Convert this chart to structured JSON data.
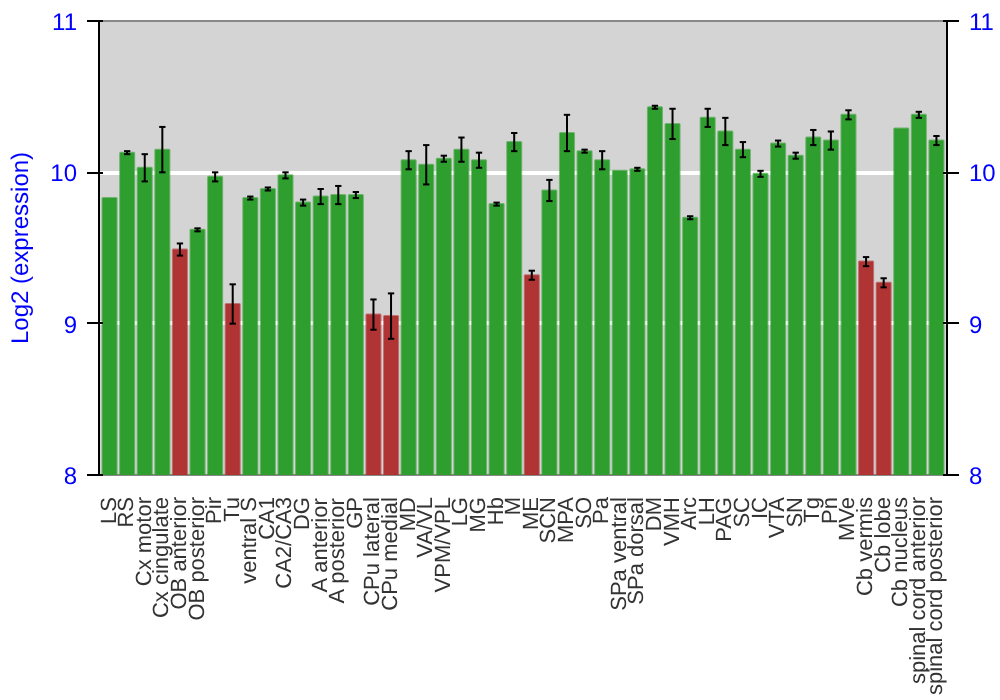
{
  "chart_data": {
    "type": "bar",
    "ylabel": "Log2 (expression)",
    "categories": [
      "LS",
      "RS",
      "Cx motor",
      "Cx cingulate",
      "OB anterior",
      "OB posterior",
      "Pir",
      "Tu",
      "ventral S",
      "CA1",
      "CA2/CA3",
      "DG",
      "A anterior",
      "A posterior",
      "GP",
      "CPu lateral",
      "CPu medial",
      "MD",
      "VA/VL",
      "VPM/VPL",
      "LG",
      "MG",
      "Hb",
      "M",
      "ME",
      "SCN",
      "MPA",
      "SO",
      "Pa",
      "SPa ventral",
      "SPa dorsal",
      "DM",
      "VMH",
      "Arc",
      "LH",
      "PAG",
      "SC",
      "IC",
      "VTA",
      "SN",
      "Tg",
      "Pn",
      "MVe",
      "Cb vermis",
      "Cb lobe",
      "Cb nucleus",
      "spinal cord anterior",
      "spinal cord posterior"
    ],
    "values": [
      9.83,
      10.13,
      10.03,
      10.15,
      9.49,
      9.62,
      9.97,
      9.13,
      9.83,
      9.89,
      9.98,
      9.8,
      9.84,
      9.85,
      9.85,
      9.06,
      9.05,
      10.08,
      10.05,
      10.09,
      10.15,
      10.08,
      9.79,
      10.2,
      9.32,
      9.88,
      10.26,
      10.14,
      10.08,
      10.01,
      10.02,
      10.43,
      10.32,
      9.7,
      10.36,
      10.27,
      10.15,
      9.99,
      10.19,
      10.11,
      10.23,
      10.21,
      10.38,
      9.41,
      9.27,
      10.29,
      10.38,
      10.21
    ],
    "errors": [
      null,
      0.01,
      0.09,
      0.15,
      0.04,
      0.01,
      0.03,
      0.13,
      0.01,
      0.01,
      0.02,
      0.02,
      0.05,
      0.06,
      0.02,
      0.1,
      0.15,
      0.06,
      0.13,
      0.02,
      0.08,
      0.05,
      0.01,
      0.06,
      0.03,
      0.07,
      0.12,
      0.01,
      0.06,
      null,
      0.01,
      0.01,
      0.1,
      0.01,
      0.06,
      0.09,
      0.05,
      0.02,
      0.02,
      0.02,
      0.05,
      0.06,
      0.03,
      0.03,
      0.03,
      null,
      0.02,
      0.03
    ],
    "colors": [
      "#2e9e2e",
      "#2e9e2e",
      "#2e9e2e",
      "#2e9e2e",
      "#b03434",
      "#2e9e2e",
      "#2e9e2e",
      "#b03434",
      "#2e9e2e",
      "#2e9e2e",
      "#2e9e2e",
      "#2e9e2e",
      "#2e9e2e",
      "#2e9e2e",
      "#2e9e2e",
      "#b03434",
      "#b03434",
      "#2e9e2e",
      "#2e9e2e",
      "#2e9e2e",
      "#2e9e2e",
      "#2e9e2e",
      "#2e9e2e",
      "#2e9e2e",
      "#b03434",
      "#2e9e2e",
      "#2e9e2e",
      "#2e9e2e",
      "#2e9e2e",
      "#2e9e2e",
      "#2e9e2e",
      "#2e9e2e",
      "#2e9e2e",
      "#2e9e2e",
      "#2e9e2e",
      "#2e9e2e",
      "#2e9e2e",
      "#2e9e2e",
      "#2e9e2e",
      "#2e9e2e",
      "#2e9e2e",
      "#2e9e2e",
      "#2e9e2e",
      "#b03434",
      "#b03434",
      "#2e9e2e",
      "#2e9e2e",
      "#2e9e2e"
    ],
    "ylim": [
      8,
      11
    ],
    "yticks": [
      8,
      9,
      10,
      11
    ],
    "y2lim": [
      8,
      11
    ],
    "y2ticks": [
      8,
      9,
      10,
      11
    ],
    "grid": "y"
  }
}
